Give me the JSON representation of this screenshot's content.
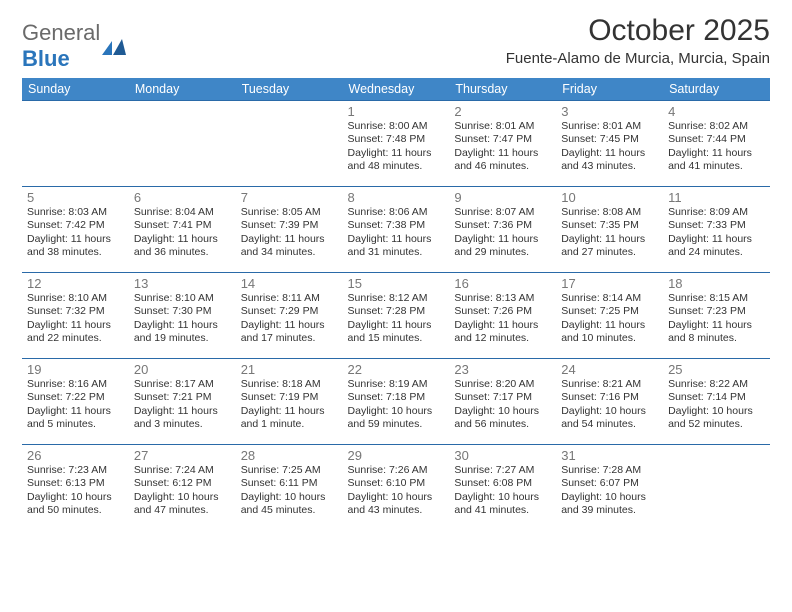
{
  "logo": {
    "text1": "General",
    "text2": "Blue"
  },
  "title": "October 2025",
  "location": "Fuente-Alamo de Murcia, Murcia, Spain",
  "colors": {
    "header_bg": "#3f86c7",
    "header_text": "#ffffff",
    "row_border": "#2a6aa8",
    "daynum_color": "#777777",
    "text_color": "#333333",
    "logo_gray": "#6a6a6a",
    "logo_blue": "#2a75bb",
    "background": "#ffffff"
  },
  "typography": {
    "title_fontsize": 30,
    "location_fontsize": 15,
    "dayhead_fontsize": 12.5,
    "daynum_fontsize": 13,
    "cell_fontsize": 10.5,
    "font_family": "Arial"
  },
  "day_headers": [
    "Sunday",
    "Monday",
    "Tuesday",
    "Wednesday",
    "Thursday",
    "Friday",
    "Saturday"
  ],
  "weeks": [
    [
      null,
      null,
      null,
      {
        "n": "1",
        "sr": "8:00 AM",
        "ss": "7:48 PM",
        "dl": "11 hours and 48 minutes."
      },
      {
        "n": "2",
        "sr": "8:01 AM",
        "ss": "7:47 PM",
        "dl": "11 hours and 46 minutes."
      },
      {
        "n": "3",
        "sr": "8:01 AM",
        "ss": "7:45 PM",
        "dl": "11 hours and 43 minutes."
      },
      {
        "n": "4",
        "sr": "8:02 AM",
        "ss": "7:44 PM",
        "dl": "11 hours and 41 minutes."
      }
    ],
    [
      {
        "n": "5",
        "sr": "8:03 AM",
        "ss": "7:42 PM",
        "dl": "11 hours and 38 minutes."
      },
      {
        "n": "6",
        "sr": "8:04 AM",
        "ss": "7:41 PM",
        "dl": "11 hours and 36 minutes."
      },
      {
        "n": "7",
        "sr": "8:05 AM",
        "ss": "7:39 PM",
        "dl": "11 hours and 34 minutes."
      },
      {
        "n": "8",
        "sr": "8:06 AM",
        "ss": "7:38 PM",
        "dl": "11 hours and 31 minutes."
      },
      {
        "n": "9",
        "sr": "8:07 AM",
        "ss": "7:36 PM",
        "dl": "11 hours and 29 minutes."
      },
      {
        "n": "10",
        "sr": "8:08 AM",
        "ss": "7:35 PM",
        "dl": "11 hours and 27 minutes."
      },
      {
        "n": "11",
        "sr": "8:09 AM",
        "ss": "7:33 PM",
        "dl": "11 hours and 24 minutes."
      }
    ],
    [
      {
        "n": "12",
        "sr": "8:10 AM",
        "ss": "7:32 PM",
        "dl": "11 hours and 22 minutes."
      },
      {
        "n": "13",
        "sr": "8:10 AM",
        "ss": "7:30 PM",
        "dl": "11 hours and 19 minutes."
      },
      {
        "n": "14",
        "sr": "8:11 AM",
        "ss": "7:29 PM",
        "dl": "11 hours and 17 minutes."
      },
      {
        "n": "15",
        "sr": "8:12 AM",
        "ss": "7:28 PM",
        "dl": "11 hours and 15 minutes."
      },
      {
        "n": "16",
        "sr": "8:13 AM",
        "ss": "7:26 PM",
        "dl": "11 hours and 12 minutes."
      },
      {
        "n": "17",
        "sr": "8:14 AM",
        "ss": "7:25 PM",
        "dl": "11 hours and 10 minutes."
      },
      {
        "n": "18",
        "sr": "8:15 AM",
        "ss": "7:23 PM",
        "dl": "11 hours and 8 minutes."
      }
    ],
    [
      {
        "n": "19",
        "sr": "8:16 AM",
        "ss": "7:22 PM",
        "dl": "11 hours and 5 minutes."
      },
      {
        "n": "20",
        "sr": "8:17 AM",
        "ss": "7:21 PM",
        "dl": "11 hours and 3 minutes."
      },
      {
        "n": "21",
        "sr": "8:18 AM",
        "ss": "7:19 PM",
        "dl": "11 hours and 1 minute."
      },
      {
        "n": "22",
        "sr": "8:19 AM",
        "ss": "7:18 PM",
        "dl": "10 hours and 59 minutes."
      },
      {
        "n": "23",
        "sr": "8:20 AM",
        "ss": "7:17 PM",
        "dl": "10 hours and 56 minutes."
      },
      {
        "n": "24",
        "sr": "8:21 AM",
        "ss": "7:16 PM",
        "dl": "10 hours and 54 minutes."
      },
      {
        "n": "25",
        "sr": "8:22 AM",
        "ss": "7:14 PM",
        "dl": "10 hours and 52 minutes."
      }
    ],
    [
      {
        "n": "26",
        "sr": "7:23 AM",
        "ss": "6:13 PM",
        "dl": "10 hours and 50 minutes."
      },
      {
        "n": "27",
        "sr": "7:24 AM",
        "ss": "6:12 PM",
        "dl": "10 hours and 47 minutes."
      },
      {
        "n": "28",
        "sr": "7:25 AM",
        "ss": "6:11 PM",
        "dl": "10 hours and 45 minutes."
      },
      {
        "n": "29",
        "sr": "7:26 AM",
        "ss": "6:10 PM",
        "dl": "10 hours and 43 minutes."
      },
      {
        "n": "30",
        "sr": "7:27 AM",
        "ss": "6:08 PM",
        "dl": "10 hours and 41 minutes."
      },
      {
        "n": "31",
        "sr": "7:28 AM",
        "ss": "6:07 PM",
        "dl": "10 hours and 39 minutes."
      },
      null
    ]
  ],
  "labels": {
    "sunrise": "Sunrise:",
    "sunset": "Sunset:",
    "daylight": "Daylight:"
  }
}
